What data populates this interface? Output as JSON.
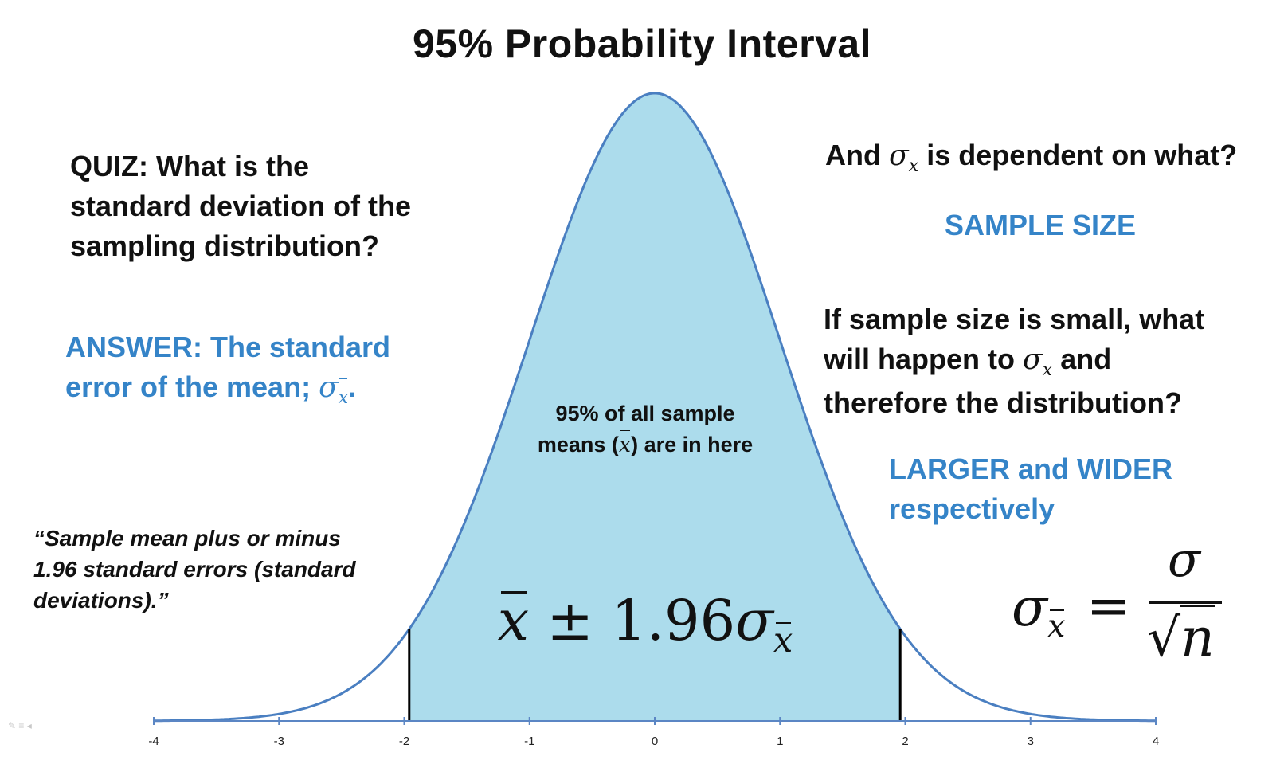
{
  "title": "95% Probability Interval",
  "quiz": {
    "lines": [
      "QUIZ: What is the",
      "standard deviation of the",
      "sampling distribution?"
    ]
  },
  "answer": {
    "line1": "ANSWER: The standard",
    "line2": "error of the mean;",
    "line2_symbol": "σ",
    "line2_end": "."
  },
  "quote": {
    "lines": [
      "“Sample mean plus or minus",
      "1.96 standard errors (standard",
      "deviations).”"
    ]
  },
  "center_note": {
    "line1": "95% of all sample",
    "line2_a": "means (",
    "line2_symbol": "x",
    "line2_b": ") are in here"
  },
  "center_formula": {
    "xbar": "x",
    "pm": "±",
    "value": "1.96",
    "sigma": "σ",
    "sub": "x"
  },
  "right": {
    "q1_a": "And",
    "q1_symbol": "σ",
    "q1_b": "is dependent on what?",
    "a1": "SAMPLE SIZE",
    "q2_line1": "If sample size is small, what",
    "q2_line2_a": "will happen to",
    "q2_line2_symbol": "σ",
    "q2_line2_b": "and",
    "q2_line3": "therefore the distribution?",
    "a2_line1": "LARGER and WIDER",
    "a2_line2": "respectively"
  },
  "right_formula": {
    "lhs_sigma": "σ",
    "lhs_sub": "x",
    "equals": "=",
    "numerator": "σ",
    "radical": "√",
    "denominator": "n"
  },
  "colors": {
    "fill": "#acdcec",
    "curve": "#4a7fc1",
    "axis": "#5b86c4",
    "accent_text": "#3584c8",
    "boundary": "#000000"
  },
  "chart_data": {
    "type": "area",
    "distribution": "standard normal",
    "x": [
      -4,
      -3.5,
      -3,
      -2.5,
      -2,
      -1.96,
      -1.5,
      -1,
      -0.5,
      0,
      0.5,
      1,
      1.5,
      1.96,
      2,
      2.5,
      3,
      3.5,
      4
    ],
    "y": [
      0.0001,
      0.0009,
      0.0044,
      0.0175,
      0.054,
      0.0584,
      0.1295,
      0.242,
      0.3521,
      0.3989,
      0.3521,
      0.242,
      0.1295,
      0.0584,
      0.054,
      0.0175,
      0.0044,
      0.0009,
      0.0001
    ],
    "shaded_interval": [
      -1.96,
      1.96
    ],
    "shaded_probability": "95%",
    "xlim": [
      -4,
      4
    ],
    "x_ticks": [
      "-4",
      "-3",
      "-2",
      "-1",
      "0",
      "1",
      "2",
      "3",
      "4"
    ],
    "title": "95% Probability Interval",
    "xlabel": "",
    "ylabel": "",
    "grid": false
  }
}
